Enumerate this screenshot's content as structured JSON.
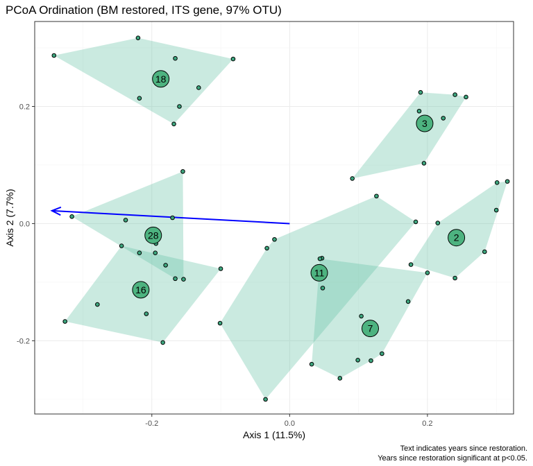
{
  "chart_data": {
    "type": "scatter",
    "title": "PCoA Ordination (BM restored, ITS gene, 97% OTU)",
    "xlabel": "Axis 1 (11.5%)",
    "ylabel": "Axis 2 (7.7%)",
    "xlim": [
      -0.37,
      0.325
    ],
    "ylim": [
      -0.325,
      0.345
    ],
    "x_ticks": [
      -0.2,
      0.0,
      0.2
    ],
    "y_ticks": [
      -0.2,
      0.0,
      0.2
    ],
    "x_tick_labels": [
      "-0.2",
      "0.0",
      "0.2"
    ],
    "y_tick_labels": [
      "-0.2",
      "0.0",
      "0.2"
    ],
    "grid": true,
    "caption_lines": [
      "Text indicates years since restoration.",
      "Years since restoration significant at p<0.05."
    ],
    "colors": {
      "hull": "#66c2a5",
      "hull_opacity": 0.35,
      "point_fill": "#3da67e",
      "centroid_fill": "#4db380",
      "vector": "#0000ff"
    },
    "vector": {
      "from": [
        0.0,
        0.0
      ],
      "to": [
        -0.345,
        0.022
      ]
    },
    "groups": [
      {
        "label": "18",
        "centroid": [
          -0.187,
          0.247
        ],
        "points": [
          [
            -0.342,
            0.287
          ],
          [
            -0.22,
            0.317
          ],
          [
            -0.082,
            0.281
          ],
          [
            -0.166,
            0.282
          ],
          [
            -0.132,
            0.232
          ],
          [
            -0.16,
            0.2
          ],
          [
            -0.218,
            0.214
          ],
          [
            -0.168,
            0.17
          ]
        ]
      },
      {
        "label": "3",
        "centroid": [
          0.196,
          0.171
        ],
        "points": [
          [
            0.19,
            0.224
          ],
          [
            0.24,
            0.22
          ],
          [
            0.256,
            0.216
          ],
          [
            0.188,
            0.192
          ],
          [
            0.223,
            0.18
          ],
          [
            0.195,
            0.103
          ],
          [
            0.091,
            0.077
          ]
        ]
      },
      {
        "label": "28",
        "centroid": [
          -0.198,
          -0.02
        ],
        "points": [
          [
            -0.155,
            0.089
          ],
          [
            -0.316,
            0.012
          ],
          [
            -0.238,
            0.006
          ],
          [
            -0.17,
            0.01
          ],
          [
            -0.194,
            -0.034
          ],
          [
            -0.18,
            -0.071
          ],
          [
            -0.154,
            -0.095
          ],
          [
            -0.166,
            -0.094
          ],
          [
            -0.218,
            -0.05
          ],
          [
            -0.195,
            -0.05
          ]
        ]
      },
      {
        "label": "16",
        "centroid": [
          -0.216,
          -0.113
        ],
        "points": [
          [
            -0.244,
            -0.038
          ],
          [
            -0.1,
            -0.077
          ],
          [
            -0.184,
            -0.203
          ],
          [
            -0.326,
            -0.167
          ],
          [
            -0.279,
            -0.138
          ],
          [
            -0.208,
            -0.154
          ]
        ]
      },
      {
        "label": "11",
        "centroid": [
          0.043,
          -0.084
        ],
        "points": [
          [
            -0.022,
            -0.027
          ],
          [
            0.126,
            0.047
          ],
          [
            0.183,
            0.003
          ],
          [
            -0.033,
            -0.042
          ],
          [
            0.047,
            -0.059
          ],
          [
            0.048,
            -0.11
          ],
          [
            -0.101,
            -0.17
          ],
          [
            -0.035,
            -0.3
          ]
        ]
      },
      {
        "label": "2",
        "centroid": [
          0.242,
          -0.024
        ],
        "points": [
          [
            0.301,
            0.07
          ],
          [
            0.316,
            0.072
          ],
          [
            0.3,
            0.023
          ],
          [
            0.215,
            0.001
          ],
          [
            0.283,
            -0.048
          ],
          [
            0.24,
            -0.093
          ],
          [
            0.176,
            -0.07
          ]
        ]
      },
      {
        "label": "7",
        "centroid": [
          0.117,
          -0.179
        ],
        "points": [
          [
            0.044,
            -0.06
          ],
          [
            0.2,
            -0.084
          ],
          [
            0.172,
            -0.133
          ],
          [
            0.104,
            -0.158
          ],
          [
            0.134,
            -0.222
          ],
          [
            0.118,
            -0.234
          ],
          [
            0.099,
            -0.233
          ],
          [
            0.032,
            -0.24
          ],
          [
            0.073,
            -0.264
          ]
        ]
      }
    ]
  }
}
